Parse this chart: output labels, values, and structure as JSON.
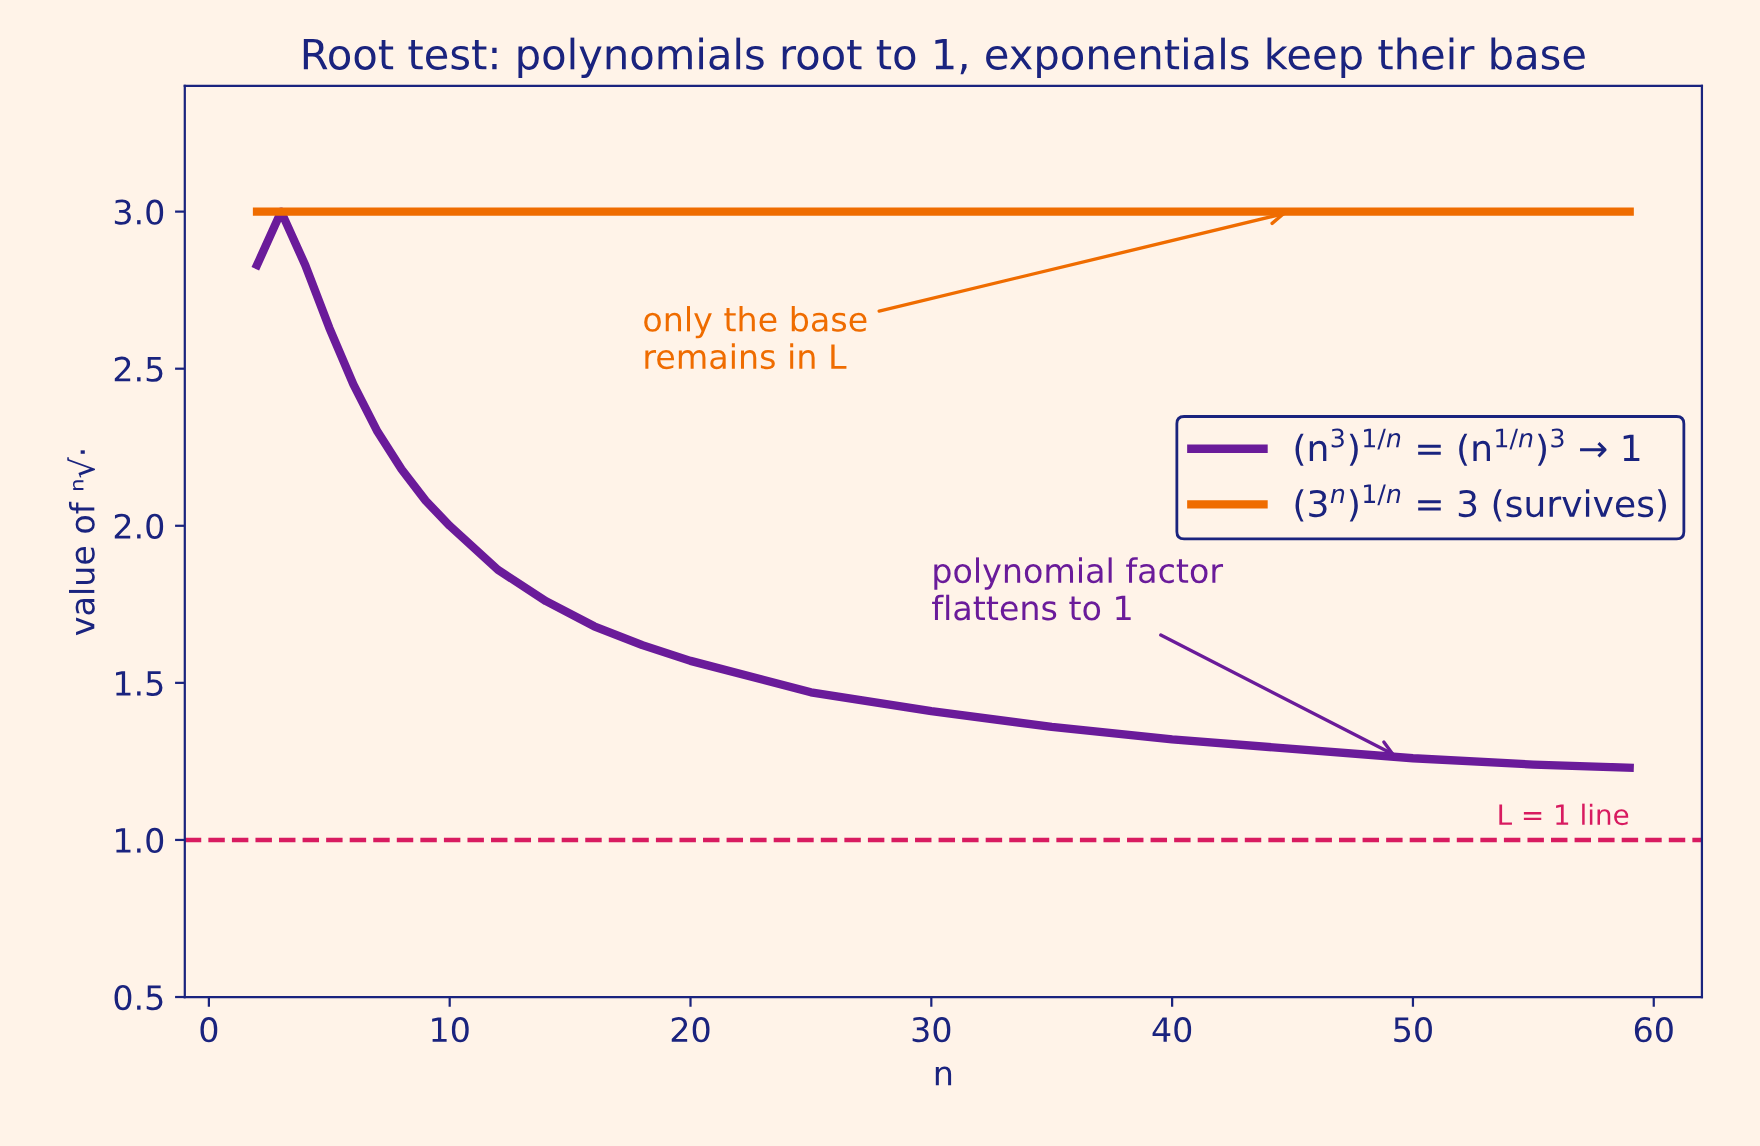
{
  "chart_data": {
    "type": "line",
    "title": "Root test: polynomials root to 1, exponentials keep their base",
    "xlabel": "n",
    "ylabel": "value of ⁿ√·",
    "series": [
      {
        "name": "(n$^{3}$)$^{1/n}$ = (n$^{1/n}$)$^{3}$ → 1",
        "color": "#6a1b9a",
        "x": [
          2,
          3,
          4,
          5,
          6,
          7,
          8,
          9,
          10,
          12,
          14,
          16,
          18,
          20,
          25,
          30,
          35,
          40,
          45,
          50,
          55,
          59
        ],
        "values": [
          2.83,
          3.0,
          2.83,
          2.63,
          2.45,
          2.3,
          2.18,
          2.08,
          2.0,
          1.86,
          1.76,
          1.68,
          1.62,
          1.57,
          1.47,
          1.41,
          1.36,
          1.32,
          1.29,
          1.26,
          1.24,
          1.23
        ]
      },
      {
        "name": "(3$^{n}$)$^{1/n}$ = 3 (survives)",
        "color": "#ef6c00",
        "x": [
          2,
          59
        ],
        "values": [
          3.0,
          3.0
        ]
      }
    ],
    "annotations": [
      {
        "text": "only the base\nremains in L",
        "x": 45,
        "y": 3.0
      },
      {
        "text": "polynomial factor\nflattens to 1",
        "x": 49.5,
        "y": 1.26
      }
    ],
    "ref_lines": [
      {
        "axis": "y",
        "value": 1.0,
        "label": "L = 1 line",
        "color": "#d81b60",
        "line_style": "dashed"
      }
    ],
    "xlim": [
      -1,
      62
    ],
    "xticks": [
      0,
      10,
      20,
      30,
      40,
      50,
      60
    ],
    "ylim": [
      0.5,
      3.4
    ],
    "yticks": [
      {
        "value": 0.5,
        "label": "0.5"
      },
      {
        "value": 1.0,
        "label": "1.0"
      },
      {
        "value": 1.5,
        "label": "1.5"
      },
      {
        "value": 2.0,
        "label": "2.0"
      },
      {
        "value": 2.5,
        "label": "2.5"
      },
      {
        "value": 3.0,
        "label": "3.0"
      }
    ],
    "grid": false,
    "legend": "center right",
    "line_style": "solid",
    "marker": "none"
  }
}
